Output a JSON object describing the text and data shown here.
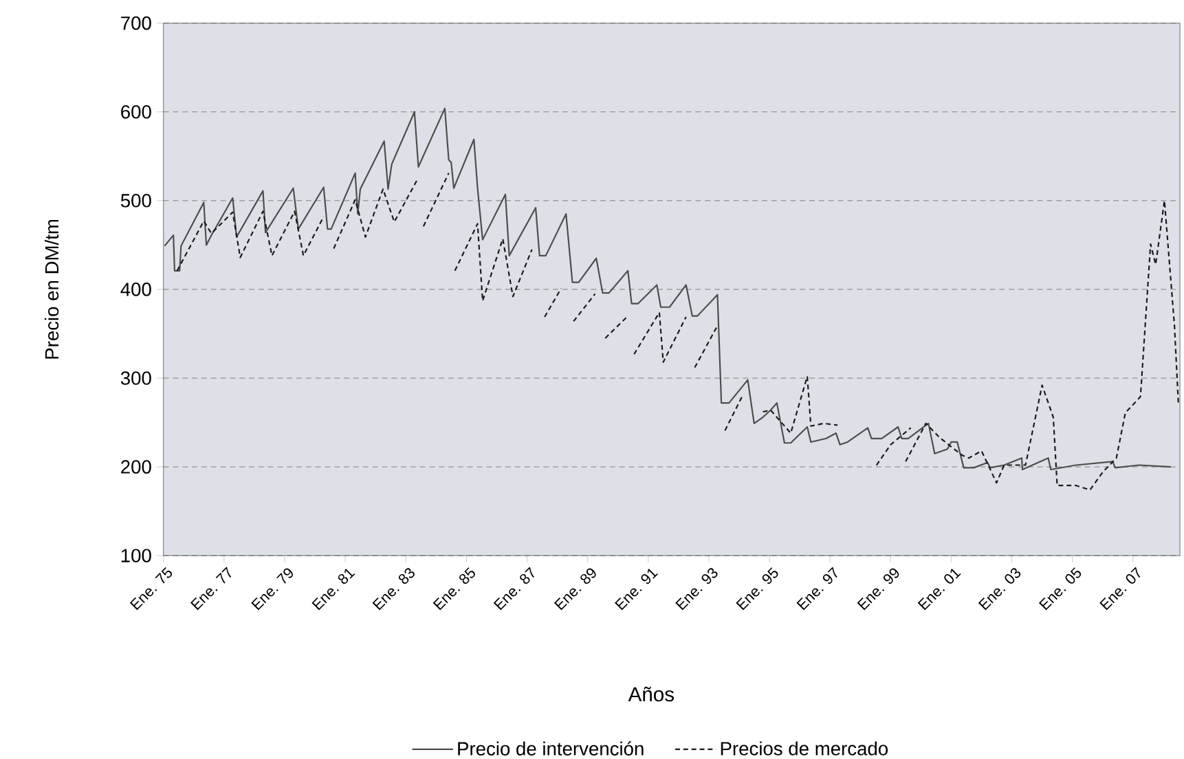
{
  "chart_data": {
    "type": "line",
    "xlabel": "Años",
    "ylabel": "Precio en DM/tm",
    "xlim": [
      "1975-01-01",
      "2008-07-20"
    ],
    "ylim": [
      100,
      700
    ],
    "xticks": [
      {
        "value": "1975-01",
        "label": "Ene. 75"
      },
      {
        "value": "1977-01",
        "label": "Ene. 77"
      },
      {
        "value": "1979-01",
        "label": "Ene. 79"
      },
      {
        "value": "1981-01",
        "label": "Ene. 81"
      },
      {
        "value": "1983-01",
        "label": "Ene. 83"
      },
      {
        "value": "1985-01",
        "label": "Ene. 85"
      },
      {
        "value": "1987-01",
        "label": "Ene. 87"
      },
      {
        "value": "1989-01",
        "label": "Ene. 89"
      },
      {
        "value": "1991-01",
        "label": "Ene. 91"
      },
      {
        "value": "1993-01",
        "label": "Ene. 93"
      },
      {
        "value": "1995-01",
        "label": "Ene. 95"
      },
      {
        "value": "1997-01",
        "label": "Ene. 97"
      },
      {
        "value": "1999-01",
        "label": "Ene. 99"
      },
      {
        "value": "2001-01",
        "label": "Ene. 01"
      },
      {
        "value": "2003-01",
        "label": "Ene. 03"
      },
      {
        "value": "2005-01",
        "label": "Ene. 05"
      },
      {
        "value": "2007-01",
        "label": "Ene. 07"
      }
    ],
    "yticks": [
      100,
      200,
      300,
      400,
      500,
      600,
      700
    ],
    "grid": "y",
    "legend": "bottom",
    "series": [
      {
        "name": "Precio de intervención",
        "color": "#4d4d4d",
        "line_style": "solid",
        "x": [
          "1975-01-15",
          "1975-05-01",
          "1975-05-15",
          "1975-07-15",
          "1975-08-01",
          "1976-05-01",
          "1976-06-01",
          "1976-08-01",
          "1977-04-15",
          "1977-06-01",
          "1978-04-15",
          "1978-05-15",
          "1979-04-15",
          "1979-06-15",
          "1980-04-15",
          "1980-06-01",
          "1980-07-15",
          "1981-05-01",
          "1981-06-01",
          "1981-07-01",
          "1982-04-15",
          "1982-06-01",
          "1982-07-15",
          "1983-04-15",
          "1983-06-01",
          "1984-04-15",
          "1984-06-01",
          "1984-07-01",
          "1984-08-01",
          "1985-04-01",
          "1985-05-15",
          "1985-07-15",
          "1986-04-15",
          "1986-06-01",
          "1987-04-15",
          "1987-06-01",
          "1987-08-15",
          "1988-04-15",
          "1988-07-01",
          "1988-09-15",
          "1989-04-15",
          "1989-07-01",
          "1989-09-15",
          "1990-05-01",
          "1990-06-15",
          "1990-09-01",
          "1991-04-15",
          "1991-06-01",
          "1991-09-15",
          "1992-04-01",
          "1992-06-15",
          "1992-08-15",
          "1993-04-15",
          "1993-06-01",
          "1993-09-01",
          "1994-04-15",
          "1994-07-01",
          "1994-10-15",
          "1995-01-15",
          "1995-04-01",
          "1995-07-01",
          "1995-09-15",
          "1996-04-01",
          "1996-05-15",
          "1996-11-15",
          "1997-03-15",
          "1997-05-01",
          "1997-08-01",
          "1998-04-01",
          "1998-05-15",
          "1998-09-15",
          "1999-04-01",
          "1999-05-15",
          "1999-08-01",
          "2000-04-01",
          "2000-06-15",
          "2000-11-15",
          "2001-01-01",
          "2001-03-15",
          "2001-06-01",
          "2001-10-01",
          "2002-03-15",
          "2002-04-15",
          "2002-10-01",
          "2003-05-01",
          "2003-05-08",
          "2004-03-15",
          "2004-04-15",
          "2005-02-15",
          "2006-05-01",
          "2006-06-01",
          "2007-03-15",
          "2008-04-01"
        ],
        "values": [
          449,
          461,
          421,
          421,
          449,
          498,
          450,
          461,
          503,
          459,
          511,
          464,
          514,
          468,
          515,
          468,
          468,
          531,
          485,
          513,
          567,
          513,
          541,
          600,
          538,
          604,
          546,
          543,
          514,
          569,
          514,
          456,
          507,
          438,
          492,
          438,
          438,
          485,
          408,
          408,
          435,
          396,
          396,
          421,
          384,
          384,
          405,
          380,
          380,
          405,
          370,
          370,
          394,
          272,
          272,
          298,
          249,
          256,
          264,
          272,
          227,
          227,
          245,
          228,
          232,
          238,
          225,
          228,
          244,
          232,
          232,
          245,
          232,
          232,
          249,
          215,
          220,
          228,
          228,
          199,
          199,
          205,
          199,
          202,
          210,
          197,
          210,
          197,
          202,
          206,
          199,
          202,
          200
        ]
      },
      {
        "name": "Precios de mercado",
        "color": "#1a1a1a",
        "line_style": "dashed",
        "x": [
          "1975-06-15",
          "1976-05-01",
          "1976-08-01",
          "1977-04-15",
          "1977-07-15",
          "1978-04-15",
          "1978-08-01",
          "1979-05-01",
          "1979-08-15",
          "1980-04-15",
          "1980-07-01",
          "1980-08-15",
          "1981-05-01",
          "1981-09-01",
          "1982-04-01",
          "1982-08-15",
          "1983-05-15",
          "1983-07-01",
          "1983-08-01",
          "1984-06-01",
          "1984-07-15",
          "1984-08-15",
          "1985-05-15",
          "1985-07-15",
          "1986-03-15",
          "1986-07-15",
          "1987-03-01",
          "1987-06-01",
          "1987-08-01",
          "1988-02-15",
          "1988-04-15",
          "1988-07-15",
          "1989-04-01",
          "1989-06-01",
          "1989-08-01",
          "1990-05-01",
          "1990-06-15",
          "1990-07-15",
          "1991-05-15",
          "1991-07-01",
          "1992-04-01",
          "1992-06-01",
          "1992-07-15",
          "1993-04-15",
          "1993-06-15",
          "1993-07-15",
          "1994-02-15",
          "1994-07-01",
          "1994-10-15",
          "1995-01-15",
          "1995-09-15",
          "1996-04-01",
          "1996-05-15",
          "1996-10-15",
          "1997-04-01",
          "1997-07-01",
          "1998-07-15",
          "1999-01-01",
          "1999-09-01",
          "1999-08-15",
          "1999-07-01",
          "2000-03-01",
          "2000-08-15",
          "2000-12-01",
          "2001-05-15",
          "2001-08-01",
          "2002-01-01",
          "2002-07-01",
          "2002-10-01",
          "2003-06-15",
          "2004-01-01",
          "2004-05-15",
          "2004-07-01",
          "2005-02-15",
          "2005-08-01",
          "2006-01-01",
          "2006-06-15",
          "2006-10-01",
          "2007-04-01",
          "2007-08-01",
          "2007-10-01",
          "2008-01-15",
          "2008-05-15",
          "2008-07-01"
        ],
        "values": [
          421,
          477,
          463,
          487,
          436,
          488,
          438,
          488,
          438,
          482,
          null,
          446,
          501,
          459,
          513,
          476,
          523,
          null,
          471,
          531,
          null,
          421,
          474,
          387,
          457,
          392,
          445,
          null,
          369,
          401,
          null,
          364,
          395,
          null,
          345,
          370,
          null,
          327,
          374,
          318,
          369,
          null,
          312,
          359,
          null,
          241,
          281,
          null,
          262,
          264,
          238,
          302,
          246,
          249,
          247,
          null,
          202,
          225,
          244,
          null,
          206,
          249,
          233,
          225,
          213,
          210,
          218,
          182,
          202,
          202,
          292,
          256,
          179,
          179,
          174,
          194,
          210,
          261,
          279,
          451,
          428,
          500,
          359,
          272
        ]
      }
    ]
  }
}
